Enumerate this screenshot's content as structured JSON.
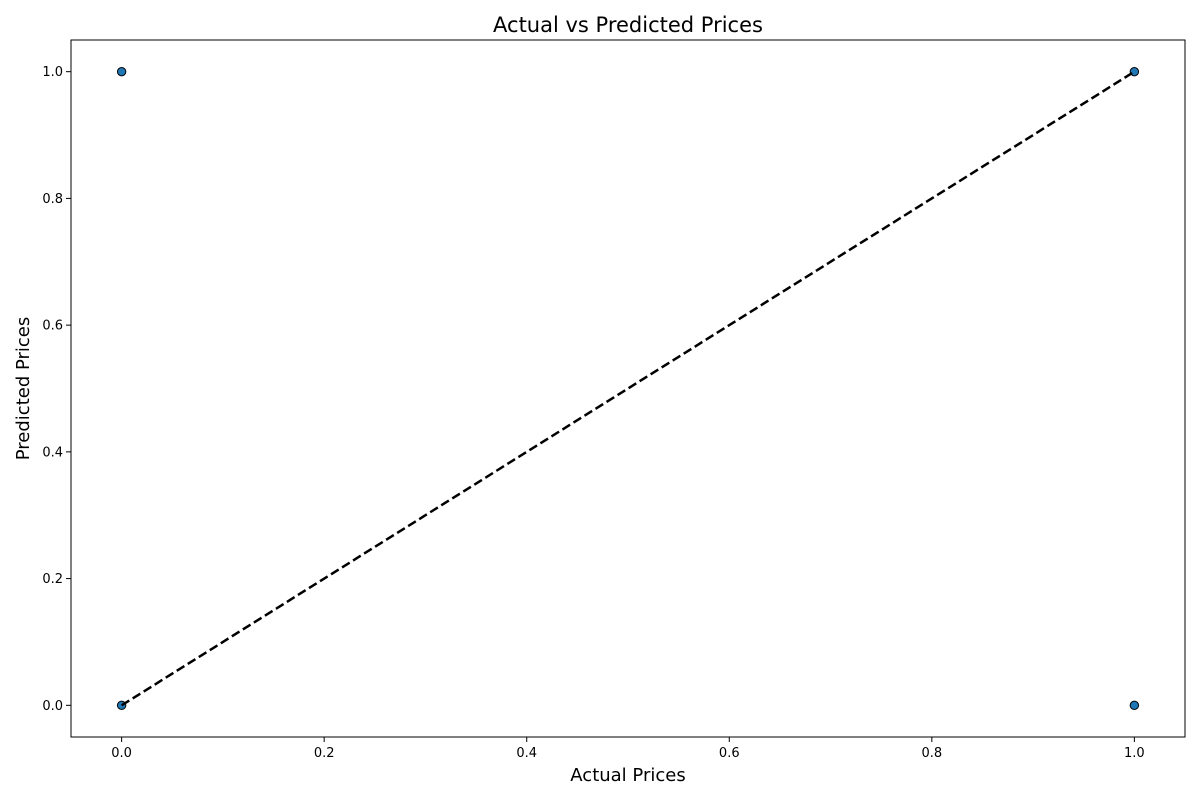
{
  "chart_data": {
    "type": "scatter",
    "title": "Actual vs Predicted Prices",
    "xlabel": "Actual Prices",
    "ylabel": "Predicted Prices",
    "xlim": [
      -0.05,
      1.05
    ],
    "ylim": [
      -0.05,
      1.05
    ],
    "xticks": [
      0.0,
      0.2,
      0.4,
      0.6,
      0.8,
      1.0
    ],
    "xtick_labels": [
      "0.0",
      "0.2",
      "0.4",
      "0.6",
      "0.8",
      "1.0"
    ],
    "yticks": [
      0.0,
      0.2,
      0.4,
      0.6,
      0.8,
      1.0
    ],
    "ytick_labels": [
      "0.0",
      "0.2",
      "0.4",
      "0.6",
      "0.8",
      "1.0"
    ],
    "grid": false,
    "legend": "none",
    "points": [
      {
        "x": 0,
        "y": 1
      },
      {
        "x": 0,
        "y": 0
      },
      {
        "x": 1,
        "y": 1
      },
      {
        "x": 1,
        "y": 0
      }
    ],
    "reference_line": {
      "x": [
        0,
        1
      ],
      "y": [
        0,
        1
      ],
      "style": "dashed",
      "color": "#000000"
    },
    "marker_color": "#1f77b4",
    "marker_edge_color": "#000000"
  }
}
